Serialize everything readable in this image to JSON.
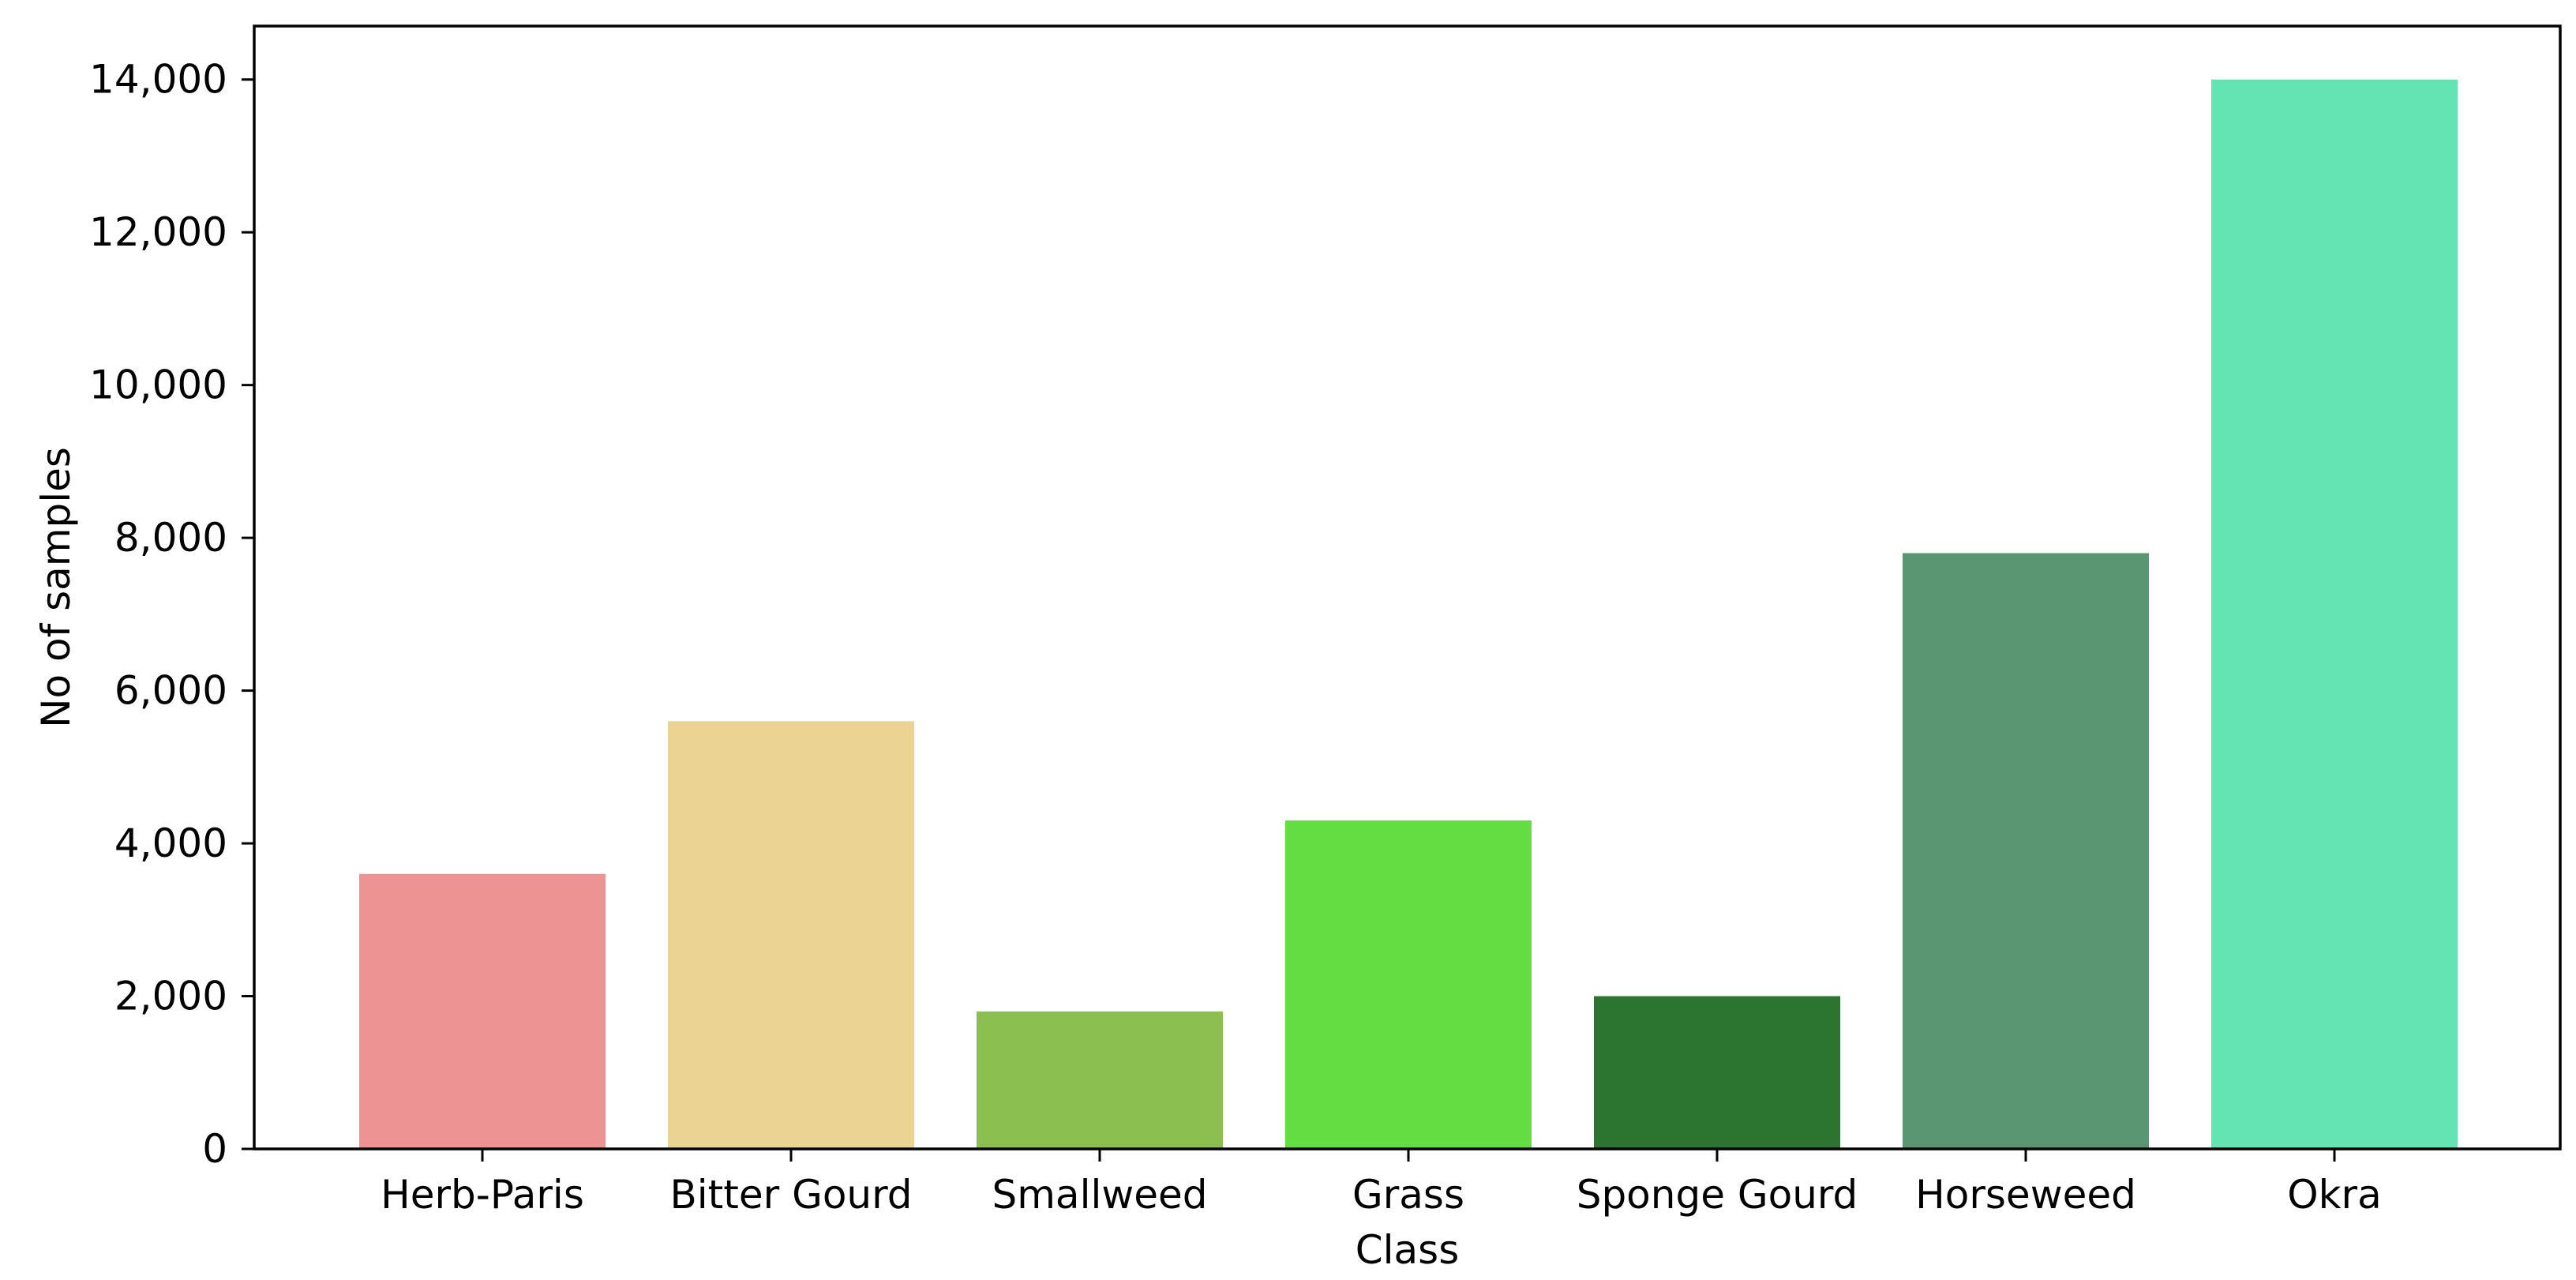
{
  "chart_data": {
    "type": "bar",
    "title": "",
    "xlabel": "Class",
    "ylabel": "No of samples",
    "categories": [
      "Herb-Paris",
      "Bitter Gourd",
      "Smallweed",
      "Grass",
      "Sponge Gourd",
      "Horseweed",
      "Okra"
    ],
    "values": [
      3600,
      5600,
      1800,
      4300,
      2000,
      7800,
      14000
    ],
    "colors": [
      "#ed9393",
      "#ebd493",
      "#8bbf50",
      "#64dd42",
      "#2c7531",
      "#5a9671",
      "#64e3b3"
    ],
    "ylim": [
      0,
      14700
    ],
    "yticks": [
      0,
      2000,
      4000,
      6000,
      8000,
      10000,
      12000,
      14000
    ],
    "ytick_labels": [
      "0",
      "2,000",
      "4,000",
      "6,000",
      "8,000",
      "10,000",
      "12,000",
      "14,000"
    ],
    "grid": false,
    "legend": "none"
  }
}
